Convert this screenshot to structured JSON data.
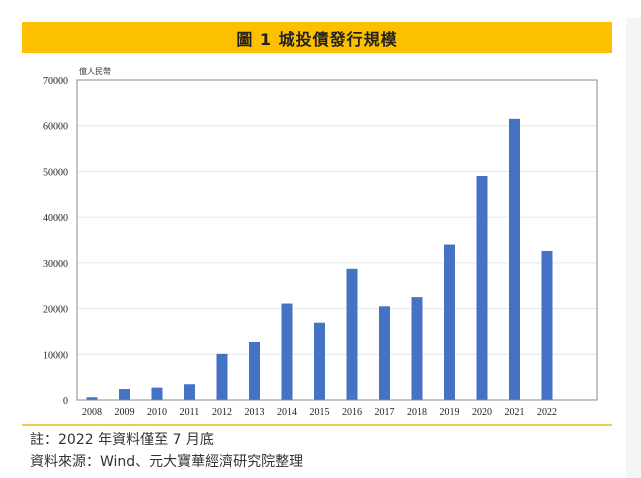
{
  "title": "圖 1  城投債發行規模",
  "chart_data": {
    "type": "bar",
    "title": "圖 1  城投債發行規模",
    "ylabel": "億人民幣",
    "xlabel": "",
    "ylim": [
      0,
      70000
    ],
    "yticks": [
      0,
      10000,
      20000,
      30000,
      40000,
      50000,
      60000,
      70000
    ],
    "grid": true,
    "categories": [
      "2008",
      "2009",
      "2010",
      "2011",
      "2012",
      "2013",
      "2014",
      "2015",
      "2016",
      "2017",
      "2018",
      "2019",
      "2020",
      "2021",
      "2022"
    ],
    "values": [
      600,
      2400,
      2700,
      3450,
      10100,
      12700,
      21100,
      16900,
      28700,
      20500,
      22500,
      34000,
      49000,
      61500,
      32600
    ],
    "bar_color": "#4472c4"
  },
  "notes": {
    "note": "註：2022 年資料僅至 7 月底",
    "source": "資料來源：Wind、元大寶華經濟研究院整理"
  },
  "colors": {
    "banner": "#fcc000",
    "rule": "#f2cc48"
  }
}
